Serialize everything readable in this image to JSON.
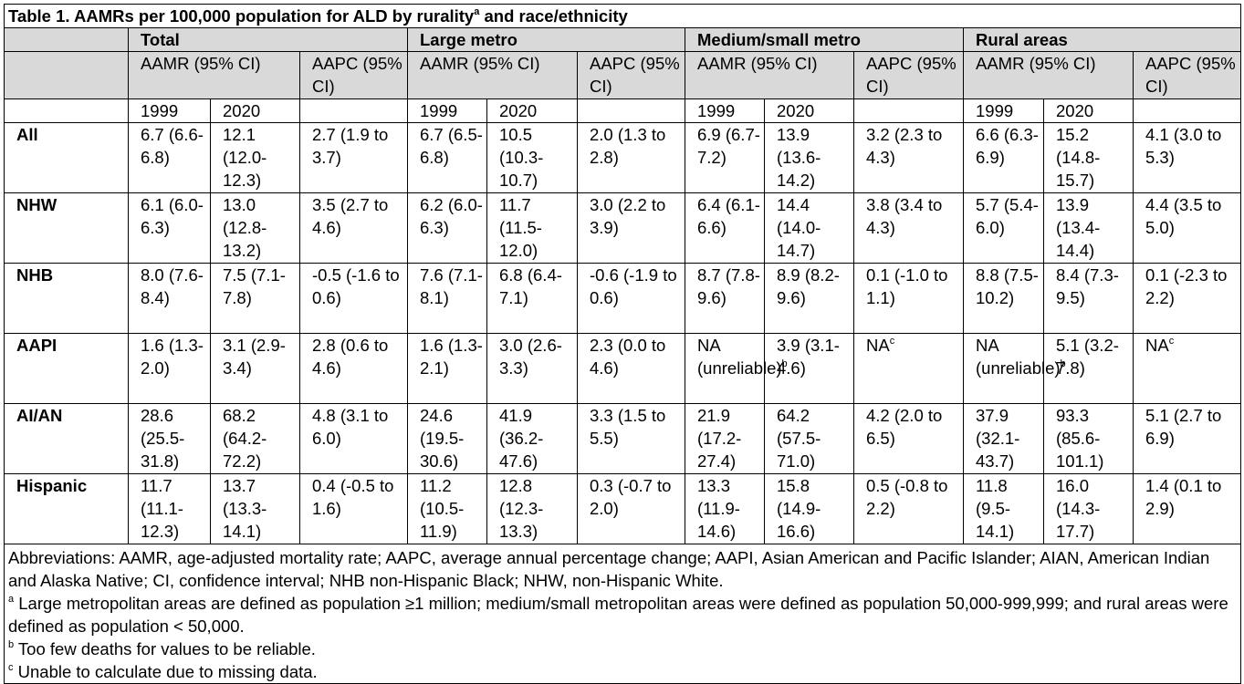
{
  "caption": "Table 1. AAMRs per 100,000 population for ALD by rurality",
  "caption_sup": "a",
  "caption_end": " and race/ethnicity",
  "groups": [
    "Total",
    "Large metro",
    "Medium/small metro",
    "Rural areas"
  ],
  "sub_aamr": "AAMR (95% CI)",
  "sub_aapc": "AAPC (95% CI)",
  "years": [
    "1999",
    "2020"
  ],
  "rows": [
    {
      "label": "All",
      "cells": [
        {
          "t": "6.7 (6.6-6.8)"
        },
        {
          "t": "12.1 (12.0-12.3)"
        },
        {
          "t": "2.7 (1.9 to 3.7)"
        },
        {
          "t": "6.7 (6.5-6.8)"
        },
        {
          "t": "10.5 (10.3-10.7)"
        },
        {
          "t": "2.0 (1.3 to 2.8)"
        },
        {
          "t": "6.9 (6.7-7.2)"
        },
        {
          "t": "13.9 (13.6-14.2)"
        },
        {
          "t": "3.2 (2.3 to 4.3)"
        },
        {
          "t": "6.6 (6.3-6.9)"
        },
        {
          "t": "15.2 (14.8-15.7)"
        },
        {
          "t": "4.1 (3.0 to 5.3)"
        }
      ]
    },
    {
      "label": "NHW",
      "cells": [
        {
          "t": "6.1 (6.0-6.3)"
        },
        {
          "t": "13.0 (12.8-13.2)"
        },
        {
          "t": "3.5 (2.7 to 4.6)"
        },
        {
          "t": "6.2 (6.0-6.3)"
        },
        {
          "t": "11.7 (11.5-12.0)"
        },
        {
          "t": "3.0 (2.2 to 3.9)"
        },
        {
          "t": "6.4 (6.1-6.6)"
        },
        {
          "t": "14.4 (14.0-14.7)"
        },
        {
          "t": "3.8 (3.4 to 4.3)"
        },
        {
          "t": "5.7 (5.4-6.0)"
        },
        {
          "t": "13.9 (13.4-14.4)"
        },
        {
          "t": "4.4 (3.5 to 5.0)"
        }
      ]
    },
    {
      "label": "NHB",
      "cells": [
        {
          "t": "8.0 (7.6-8.4)"
        },
        {
          "t": "7.5 (7.1-7.8)"
        },
        {
          "t": "-0.5 (-1.6 to 0.6)"
        },
        {
          "t": "7.6 (7.1-8.1)"
        },
        {
          "t": "6.8 (6.4-7.1)"
        },
        {
          "t": "-0.6 (-1.9 to 0.6)"
        },
        {
          "t": "8.7 (7.8-9.6)"
        },
        {
          "t": "8.9 (8.2-9.6)"
        },
        {
          "t": "0.1 (-1.0 to 1.1)"
        },
        {
          "t": "8.8 (7.5-10.2)"
        },
        {
          "t": "8.4 (7.3-9.5)"
        },
        {
          "t": "0.1 (-2.3 to 2.2)"
        }
      ]
    },
    {
      "label": "AAPI",
      "cells": [
        {
          "t": "1.6 (1.3-2.0)"
        },
        {
          "t": "3.1 (2.9-3.4)"
        },
        {
          "t": "2.8 (0.6 to 4.6)"
        },
        {
          "t": "1.6 (1.3-2.1)"
        },
        {
          "t": "3.0 (2.6-3.3)"
        },
        {
          "t": "2.3 (0.0 to 4.6)"
        },
        {
          "t": "NA (unreliable)",
          "sup": "b"
        },
        {
          "t": "3.9 (3.1-4.6)"
        },
        {
          "t": "NA",
          "sup": "c"
        },
        {
          "t": "NA (unreliable)",
          "sup": "b"
        },
        {
          "t": "5.1 (3.2-7.8)"
        },
        {
          "t": "NA",
          "sup": "c"
        }
      ]
    },
    {
      "label": "AI/AN",
      "cells": [
        {
          "t": "28.6 (25.5-31.8)"
        },
        {
          "t": "68.2 (64.2-72.2)"
        },
        {
          "t": "4.8 (3.1 to 6.0)"
        },
        {
          "t": "24.6 (19.5-30.6)"
        },
        {
          "t": "41.9 (36.2-47.6)"
        },
        {
          "t": "3.3 (1.5 to 5.5)"
        },
        {
          "t": "21.9 (17.2-27.4)"
        },
        {
          "t": "64.2 (57.5-71.0)"
        },
        {
          "t": "4.2 (2.0 to 6.5)"
        },
        {
          "t": "37.9 (32.1-43.7)"
        },
        {
          "t": "93.3 (85.6-101.1)"
        },
        {
          "t": "5.1 (2.7 to 6.9)"
        }
      ]
    },
    {
      "label": "Hispanic",
      "cells": [
        {
          "t": "11.7 (11.1-12.3)"
        },
        {
          "t": "13.7 (13.3-14.1)"
        },
        {
          "t": "0.4 (-0.5 to 1.6)"
        },
        {
          "t": "11.2 (10.5-11.9)"
        },
        {
          "t": "12.8 (12.3-13.3)"
        },
        {
          "t": "0.3 (-0.7 to 2.0)"
        },
        {
          "t": "13.3 (11.9-14.6)"
        },
        {
          "t": "15.8 (14.9-16.6)"
        },
        {
          "t": "0.5 (-0.8 to 2.2)"
        },
        {
          "t": "11.8 (9.5-14.1)"
        },
        {
          "t": "16.0 (14.3-17.7)"
        },
        {
          "t": "1.4 (0.1 to 2.9)"
        }
      ]
    }
  ],
  "footnotes": {
    "abbrev": "Abbreviations: AAMR, age-adjusted mortality rate; AAPC, average annual percentage change; AAPI, Asian American and Pacific Islander; AIAN, American Indian and Alaska Native; CI, confidence interval; NHB non-Hispanic Black; NHW, non-Hispanic White.",
    "a_mark": "a",
    "a_text": " Large metropolitan areas are defined as population ≥1 million; medium/small metropolitan areas were defined as population 50,000-999,999; and rural areas were defined as population < 50,000.",
    "b_mark": "b",
    "b_text": " Too few deaths for values to be reliable.",
    "c_mark": "c",
    "c_text": " Unable to calculate due to missing data."
  }
}
